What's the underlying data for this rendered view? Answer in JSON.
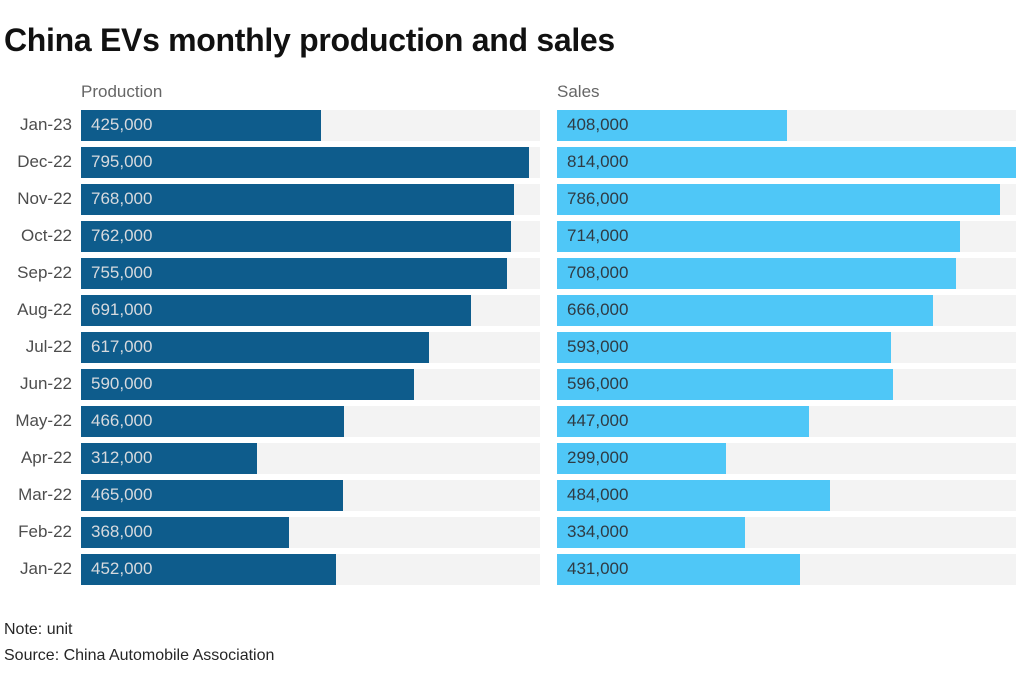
{
  "title": "China EVs monthly production and sales",
  "headers": {
    "production": "Production",
    "sales": "Sales"
  },
  "footnotes": {
    "note": "Note: unit",
    "source": "Source: China Automobile Association"
  },
  "colors": {
    "production_bar": "#0e5c8c",
    "sales_bar": "#4fc7f7",
    "track": "#f3f3f3",
    "production_value_text": "#d7dade",
    "sales_value_text": "#2f3b44",
    "title_text": "#111111",
    "header_text": "#666666",
    "month_text": "#4d4d4d"
  },
  "chart_data": {
    "type": "bar",
    "orientation": "horizontal",
    "title": "China EVs monthly production and sales",
    "categories": [
      "Jan-23",
      "Dec-22",
      "Nov-22",
      "Oct-22",
      "Sep-22",
      "Aug-22",
      "Jul-22",
      "Jun-22",
      "May-22",
      "Apr-22",
      "Mar-22",
      "Feb-22",
      "Jan-22"
    ],
    "series": [
      {
        "name": "Production",
        "values": [
          425000,
          795000,
          768000,
          762000,
          755000,
          691000,
          617000,
          590000,
          466000,
          312000,
          465000,
          368000,
          452000
        ]
      },
      {
        "name": "Sales",
        "values": [
          408000,
          814000,
          786000,
          714000,
          708000,
          666000,
          593000,
          596000,
          447000,
          299000,
          484000,
          334000,
          431000
        ]
      }
    ],
    "xlim": [
      0,
      814000
    ],
    "value_labels": "inside-bar, thousands separated",
    "grid": false,
    "legend_position": "column headers above each panel",
    "note": "Note: unit",
    "source": "Source: China Automobile Association"
  }
}
